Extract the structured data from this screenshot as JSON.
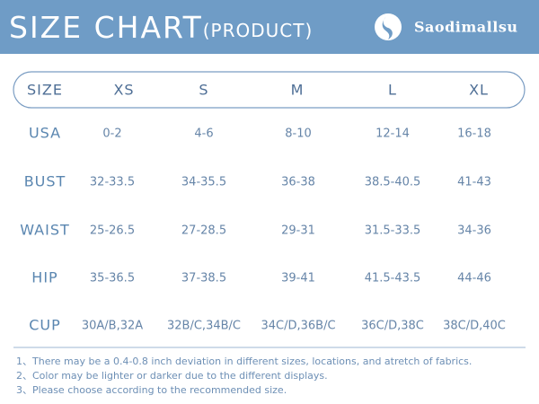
{
  "title": "SIZE CHART",
  "title_suffix": "(PRODUCT)",
  "brand": "Saodimallsu",
  "header": [
    "SIZE",
    "XS",
    "S",
    "M",
    "L",
    "XL"
  ],
  "rows": [
    [
      "USA",
      "0-2",
      "4-6",
      "8-10",
      "12-14",
      "16-18"
    ],
    [
      "BUST",
      "32-33.5",
      "34-35.5",
      "36-38",
      "38.5-40.5",
      "41-43"
    ],
    [
      "WAIST",
      "25-26.5",
      "27-28.5",
      "29-31",
      "31.5-33.5",
      "34-36"
    ],
    [
      "HIP",
      "35-36.5",
      "37-38.5",
      "39-41",
      "41.5-43.5",
      "44-46"
    ],
    [
      "CUP",
      "30A/B,32A",
      "32B/C,34B/C",
      "34C/D,36B/C",
      "36C/D,38C",
      "38C/D,40C"
    ]
  ],
  "notes": [
    "1、There may be a 0.4-0.8 inch deviation in different sizes, locations, and atretch of fabrics.",
    "2、Color may be lighter or darker due to the different displays.",
    "3、Please choose according to the recommended size."
  ]
}
